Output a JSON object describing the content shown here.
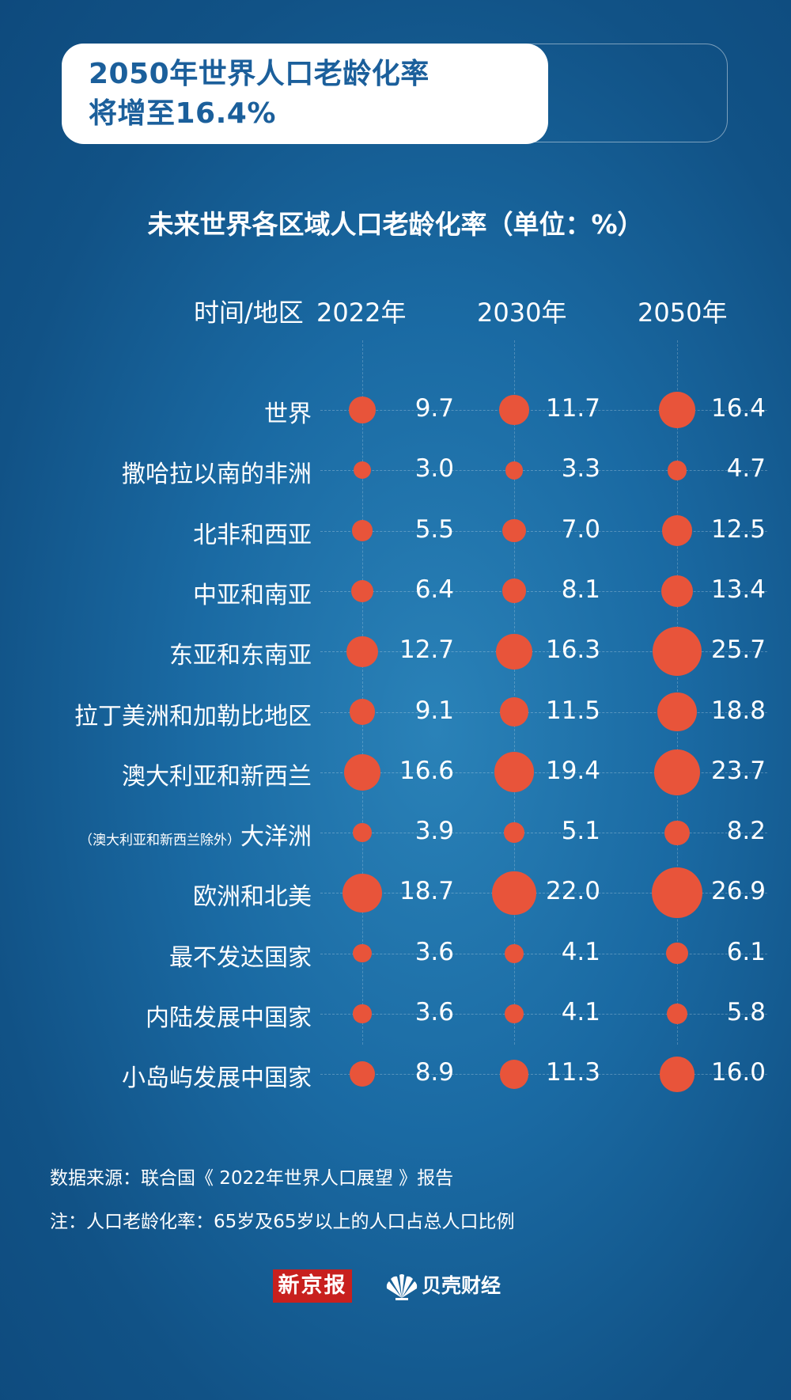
{
  "title": "2050年世界人口老龄化率\n将增至16.4%",
  "chart_data": {
    "type": "bubble-table",
    "title": "未来世界各区域人口老龄化率（单位：%）",
    "row_header": "时间/地区",
    "columns": [
      "2022年",
      "2030年",
      "2050年"
    ],
    "rows": [
      {
        "note": "",
        "label": "世界",
        "values": [
          "9.7",
          "11.7",
          "16.4"
        ]
      },
      {
        "note": "",
        "label": "撒哈拉以南的非洲",
        "values": [
          "3.0",
          "3.3",
          "4.7"
        ]
      },
      {
        "note": "",
        "label": "北非和西亚",
        "values": [
          "5.5",
          "7.0",
          "12.5"
        ]
      },
      {
        "note": "",
        "label": "中亚和南亚",
        "values": [
          "6.4",
          "8.1",
          "13.4"
        ]
      },
      {
        "note": "",
        "label": "东亚和东南亚",
        "values": [
          "12.7",
          "16.3",
          "25.7"
        ]
      },
      {
        "note": "",
        "label": "拉丁美洲和加勒比地区",
        "values": [
          "9.1",
          "11.5",
          "18.8"
        ]
      },
      {
        "note": "",
        "label": "澳大利亚和新西兰",
        "values": [
          "16.6",
          "19.4",
          "23.7"
        ]
      },
      {
        "note": "（澳大利亚和新西兰除外）",
        "label": "大洋洲",
        "values": [
          "3.9",
          "5.1",
          "8.2"
        ]
      },
      {
        "note": "",
        "label": "欧洲和北美",
        "values": [
          "18.7",
          "22.0",
          "26.9"
        ]
      },
      {
        "note": "",
        "label": "最不发达国家",
        "values": [
          "3.6",
          "4.1",
          "6.1"
        ]
      },
      {
        "note": "",
        "label": "内陆发展中国家",
        "values": [
          "3.6",
          "4.1",
          "5.8"
        ]
      },
      {
        "note": "",
        "label": "小岛屿发展中国家",
        "values": [
          "8.9",
          "11.3",
          "16.0"
        ]
      }
    ],
    "dot_color": "#e8543a"
  },
  "footnotes": {
    "source": "数据来源：联合国《 2022年世界人口展望 》报告",
    "note": "注：人口老龄化率：65岁及65岁以上的人口占总人口比例"
  },
  "brand": {
    "newspaper": "新京报",
    "finance": "贝壳财经",
    "logo_icon": "shell-fan-icon"
  }
}
